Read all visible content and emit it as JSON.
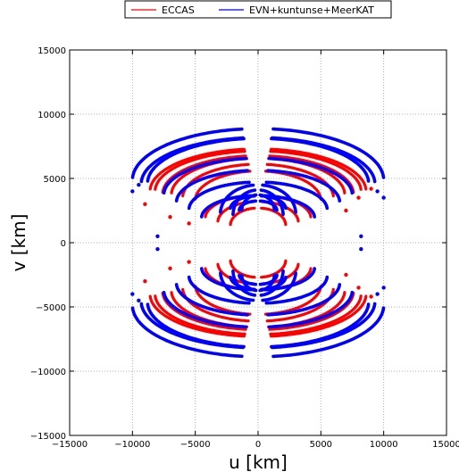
{
  "chart_data": {
    "type": "scatter",
    "title": "",
    "xlabel": "u [km]",
    "ylabel": "v [km]",
    "xlim": [
      -15000,
      15000
    ],
    "ylim": [
      -15000,
      15000
    ],
    "grid": true,
    "legend_placement": "top-center (above plot)",
    "x_ticks": [
      -15000,
      -10000,
      -5000,
      0,
      5000,
      10000,
      15000
    ],
    "y_ticks": [
      -15000,
      -10000,
      -5000,
      0,
      5000,
      10000,
      15000
    ],
    "x_tick_labels": [
      "−15000",
      "−10000",
      "−5000",
      "0",
      "5000",
      "10000",
      "15000"
    ],
    "y_tick_labels": [
      "−15000",
      "−10000",
      "−5000",
      "0",
      "5000",
      "10000",
      "15000"
    ],
    "series": [
      {
        "name": "ECCAS",
        "color": "#ff0000",
        "tracks": [
          {
            "a": 8200,
            "b": 6300,
            "yc": 2400
          },
          {
            "a": 7600,
            "b": 6000,
            "yc": 2200
          },
          {
            "a": 6900,
            "b": 5700,
            "yc": 2500
          },
          {
            "a": 6000,
            "b": 5200,
            "yc": 2600
          },
          {
            "a": 5000,
            "b": 4600,
            "yc": 2800
          },
          {
            "a": 8600,
            "b": 6600,
            "yc": 2000
          },
          {
            "a": 4200,
            "b": 3500,
            "yc": 500
          },
          {
            "a": 3200,
            "b": 3200,
            "yc": 0
          },
          {
            "a": 2200,
            "b": 2700,
            "yc": 0
          }
        ],
        "arc_endpoints": [
          [
            -9000,
            3000
          ],
          [
            -7000,
            2000
          ],
          [
            -5500,
            1500
          ],
          [
            8000,
            3500
          ],
          [
            7000,
            2500
          ],
          [
            9000,
            4200
          ]
        ]
      },
      {
        "name": "EVN+kuntunse+MeerKAT",
        "color": "#0000ff",
        "tracks": [
          {
            "a": 10000,
            "b": 8000,
            "yc": 2500
          },
          {
            "a": 9300,
            "b": 7200,
            "yc": 2800
          },
          {
            "a": 8800,
            "b": 7000,
            "yc": 3200
          },
          {
            "a": 7500,
            "b": 5700,
            "yc": 2500
          },
          {
            "a": 6500,
            "b": 5000,
            "yc": 1800
          },
          {
            "a": 5500,
            "b": 4300,
            "yc": 1200
          },
          {
            "a": 4500,
            "b": 3500,
            "yc": 500
          },
          {
            "a": 3000,
            "b": 4500,
            "yc": 0
          },
          {
            "a": 2000,
            "b": 4000,
            "yc": 300
          },
          {
            "a": 1300,
            "b": 2500,
            "yc": 3500
          },
          {
            "a": 2200,
            "b": 2000,
            "yc": 4700
          },
          {
            "a": 1500,
            "b": 1500,
            "yc": 5000
          }
        ],
        "arc_endpoints": [
          [
            -10000,
            4000
          ],
          [
            -9500,
            4500
          ],
          [
            10000,
            3500
          ],
          [
            9500,
            4000
          ],
          [
            -8000,
            500
          ],
          [
            8200,
            500
          ]
        ]
      }
    ]
  }
}
